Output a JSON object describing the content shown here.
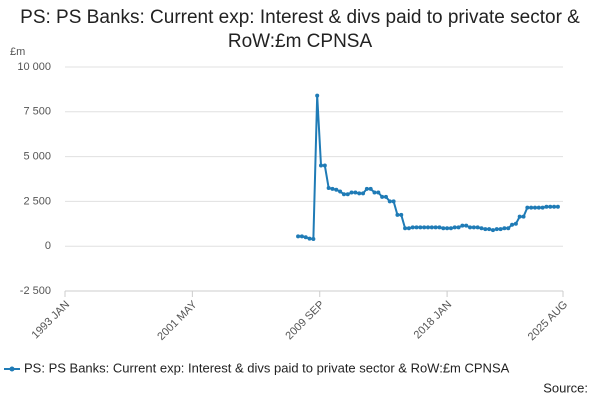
{
  "chart_data": {
    "type": "line",
    "title": "PS: PS Banks: Current exp: Interest & divs paid to private sector & RoW:£m CPNSA",
    "y_label": "£m",
    "source": "Source:",
    "legend": "bottom",
    "grid": true,
    "xlim": [
      1993.0,
      2025.583
    ],
    "xticks": [
      {
        "value": 1993.0,
        "label": "1993 JAN"
      },
      {
        "value": 2001.333,
        "label": "2001 MAY"
      },
      {
        "value": 2009.667,
        "label": "2009 SEP"
      },
      {
        "value": 2018.0,
        "label": "2018 JAN"
      },
      {
        "value": 2025.583,
        "label": "2025 AUG"
      }
    ],
    "ylim": [
      -2500,
      10000
    ],
    "yticks": [
      {
        "value": 10000,
        "label": "10 000"
      },
      {
        "value": 7500,
        "label": "7 500"
      },
      {
        "value": 5000,
        "label": "5 000"
      },
      {
        "value": 2500,
        "label": "2 500"
      },
      0,
      {
        "value": -2500,
        "label": "-2 500"
      }
    ],
    "x": [
      2008.25,
      2008.5,
      2008.75,
      2009.0,
      2009.25,
      2009.5,
      2009.75,
      2010.0,
      2010.25,
      2010.5,
      2010.75,
      2011.0,
      2011.25,
      2011.5,
      2011.75,
      2012.0,
      2012.25,
      2012.5,
      2012.75,
      2013.0,
      2013.25,
      2013.5,
      2013.75,
      2014.0,
      2014.25,
      2014.5,
      2014.75,
      2015.0,
      2015.25,
      2015.5,
      2015.75,
      2016.0,
      2016.25,
      2016.5,
      2016.75,
      2017.0,
      2017.25,
      2017.5,
      2017.75,
      2018.0,
      2018.25,
      2018.5,
      2018.75,
      2019.0,
      2019.25,
      2019.5,
      2019.75,
      2020.0,
      2020.25,
      2020.5,
      2020.75,
      2021.0,
      2021.25,
      2021.5,
      2021.75,
      2022.0,
      2022.25,
      2022.5,
      2022.75,
      2023.0,
      2023.25,
      2023.5,
      2023.75,
      2024.0,
      2024.25,
      2024.5,
      2024.75,
      2025.0,
      2025.25
    ],
    "series": [
      {
        "name": "PS: PS Banks: Current exp: Interest & divs paid to private sector & RoW:£m CPNSA",
        "color": "#1f7bb6",
        "values": [
          550,
          550,
          500,
          420,
          400,
          8400,
          4500,
          4500,
          3250,
          3200,
          3150,
          3050,
          2900,
          2900,
          3000,
          3000,
          2950,
          2950,
          3200,
          3200,
          3000,
          3000,
          2750,
          2750,
          2500,
          2500,
          1750,
          1750,
          1000,
          1000,
          1050,
          1050,
          1050,
          1050,
          1050,
          1050,
          1050,
          1050,
          1000,
          1000,
          1000,
          1050,
          1050,
          1150,
          1150,
          1050,
          1050,
          1050,
          1000,
          950,
          950,
          900,
          950,
          950,
          1000,
          1000,
          1200,
          1250,
          1650,
          1650,
          2150,
          2150,
          2150,
          2150,
          2150,
          2200,
          2200,
          2200,
          2200
        ]
      }
    ]
  }
}
